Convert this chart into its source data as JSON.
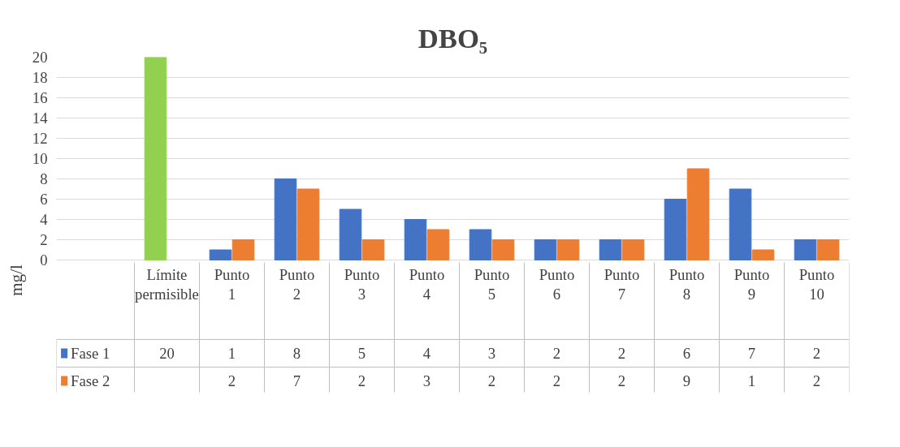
{
  "chart_data": {
    "type": "bar",
    "title": "DBO₅",
    "ylabel": "mg/l",
    "categories": [
      "Límite permisible",
      "Punto 1",
      "Punto 2",
      "Punto 3",
      "Punto 4",
      "Punto 5",
      "Punto 6",
      "Punto 7",
      "Punto 8",
      "Punto 9",
      "Punto 10"
    ],
    "series": [
      {
        "name": "Fase 1",
        "color": "#4472c4",
        "colors": [
          "#92d050",
          "#4472c4",
          "#4472c4",
          "#4472c4",
          "#4472c4",
          "#4472c4",
          "#4472c4",
          "#4472c4",
          "#4472c4",
          "#4472c4",
          "#4472c4"
        ],
        "values": [
          20,
          1,
          8,
          5,
          4,
          3,
          2,
          2,
          6,
          7,
          2
        ]
      },
      {
        "name": "Fase 2",
        "color": "#ed7d31",
        "values": [
          null,
          2,
          7,
          2,
          3,
          2,
          2,
          2,
          9,
          1,
          2
        ]
      }
    ],
    "ylim": [
      0,
      20
    ],
    "yticks": [
      0,
      2,
      4,
      6,
      8,
      10,
      12,
      14,
      16,
      18,
      20
    ],
    "grid": "y",
    "legend": "bottom",
    "data_labels": true
  }
}
